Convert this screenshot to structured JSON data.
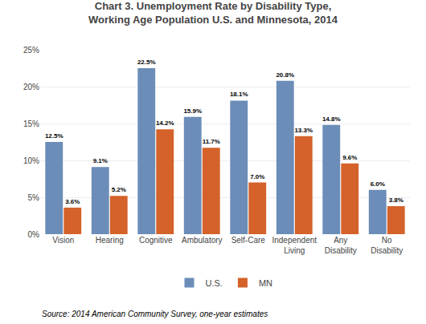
{
  "chart_data": {
    "type": "bar",
    "title": "Chart 3. Unemployment Rate by Disability Type,\nWorking Age Population U.S. and Minnesota, 2014",
    "categories": [
      "Vision",
      "Hearing",
      "Cognitive",
      "Ambulatory",
      "Self-Care",
      "Independent\nLiving",
      "Any\nDisability",
      "No\nDisability"
    ],
    "series": [
      {
        "name": "U.S.",
        "color": "#6b8db8",
        "values": [
          12.5,
          9.1,
          22.5,
          15.9,
          18.1,
          20.8,
          14.8,
          6.0
        ],
        "value_labels": [
          "12.5%",
          "9.1%",
          "22.5%",
          "15.9%",
          "18.1%",
          "20.8%",
          "14.8%",
          "6.0%"
        ]
      },
      {
        "name": "MN",
        "color": "#d4622a",
        "values": [
          3.6,
          5.2,
          14.2,
          11.7,
          7.0,
          13.3,
          9.6,
          3.8
        ],
        "value_labels": [
          "3.6%",
          "5.2%",
          "14.2%",
          "11.7%",
          "7.0%",
          "13.3%",
          "9.6%",
          "3.8%"
        ]
      }
    ],
    "ylim": [
      0,
      25
    ],
    "yticks": [
      {
        "value": 0,
        "label": "0%"
      },
      {
        "value": 5,
        "label": "5%"
      },
      {
        "value": 10,
        "label": "10%"
      },
      {
        "value": 15,
        "label": "15%"
      },
      {
        "value": 20,
        "label": "20%"
      },
      {
        "value": 25,
        "label": "25%"
      }
    ],
    "grid": true,
    "legend": "bottom",
    "data_labels": true,
    "annotations": [
      "Source: 2014 American Community Survey, one-year estimates"
    ]
  }
}
